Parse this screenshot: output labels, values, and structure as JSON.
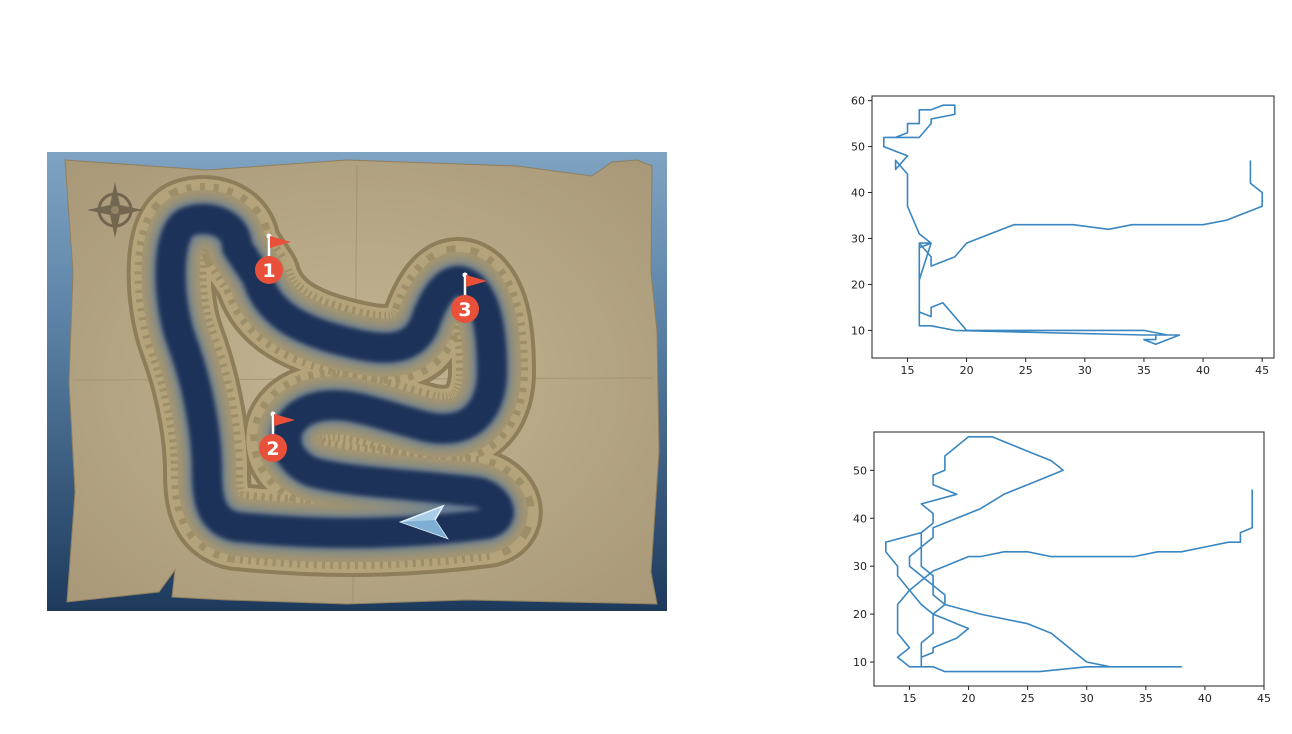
{
  "map": {
    "waypoints": [
      {
        "label": "1"
      },
      {
        "label": "2"
      },
      {
        "label": "3"
      }
    ],
    "icons": {
      "compass": "compass-rose-icon",
      "player": "player-arrow-icon",
      "flag": "flag-icon"
    },
    "colors": {
      "water": "#1d3358",
      "parchment": "#b8a988",
      "sand": "#a6966f",
      "marker": "#e8503a",
      "sky": "#6a8fb0",
      "player": "#a9cde8"
    }
  },
  "chart_data": [
    {
      "type": "line",
      "color": "#3a86c0",
      "xlim": [
        12,
        46
      ],
      "ylim": [
        4,
        61
      ],
      "xticks": [
        15,
        20,
        25,
        30,
        35,
        40,
        45
      ],
      "yticks": [
        10,
        20,
        30,
        40,
        50,
        60
      ],
      "x": [
        44,
        44,
        45,
        45,
        42,
        40,
        36,
        34,
        32,
        29,
        27,
        24,
        23,
        22,
        20,
        19,
        18,
        17,
        17,
        16,
        16,
        17,
        16,
        16,
        16,
        16,
        17,
        17,
        18,
        20,
        30,
        35,
        35,
        37,
        36,
        36,
        35,
        36,
        38,
        35,
        19,
        17,
        16,
        16,
        16,
        17,
        16,
        15,
        15,
        15,
        14,
        14,
        15,
        14,
        13,
        13,
        15,
        16,
        17,
        17,
        19,
        19,
        18,
        17,
        16,
        16,
        15,
        15,
        14,
        13,
        13
      ],
      "y": [
        47,
        42,
        40,
        37,
        34,
        33,
        33,
        33,
        32,
        33,
        33,
        33,
        32,
        31,
        29,
        26,
        25,
        24,
        26,
        29,
        29,
        29,
        28,
        29,
        16,
        14,
        13,
        15,
        16,
        10,
        10,
        10,
        10,
        9,
        9,
        8,
        8,
        7,
        9,
        9,
        10,
        11,
        11,
        12,
        21,
        29,
        31,
        37,
        39,
        44,
        47,
        45,
        48,
        49,
        50,
        52,
        52,
        52,
        55,
        56,
        57,
        59,
        59,
        58,
        58,
        55,
        55,
        53,
        52,
        52,
        52
      ],
      "title": "",
      "xlabel": "",
      "ylabel": ""
    },
    {
      "type": "line",
      "color": "#3a86c0",
      "xlim": [
        12,
        45
      ],
      "ylim": [
        5,
        58
      ],
      "xticks": [
        15,
        20,
        25,
        30,
        35,
        40,
        45
      ],
      "yticks": [
        10,
        20,
        30,
        40,
        50
      ],
      "x": [
        44,
        44,
        43,
        43,
        42,
        40,
        38,
        36,
        34,
        32,
        30,
        28,
        27,
        25,
        23,
        21,
        20,
        19,
        18,
        17,
        16,
        15,
        14,
        14,
        14,
        14,
        15,
        14,
        15,
        16,
        16,
        16,
        16,
        17,
        17,
        17,
        18,
        18,
        17,
        17,
        16,
        16,
        16,
        16,
        17,
        17,
        16,
        19,
        17,
        17,
        18,
        18,
        18,
        19,
        20,
        22,
        23,
        24,
        25,
        26,
        27,
        28,
        27,
        25,
        23,
        21,
        19,
        17,
        17,
        16,
        15,
        15,
        16,
        17,
        17,
        18,
        21,
        25,
        27,
        28,
        29,
        30,
        32,
        35,
        38,
        30,
        26,
        24,
        21,
        18,
        17,
        16,
        16,
        17,
        17,
        19,
        20,
        19,
        18,
        17,
        16,
        15,
        14,
        14,
        13,
        13,
        16
      ],
      "y": [
        46,
        38,
        37,
        35,
        35,
        34,
        33,
        33,
        32,
        32,
        32,
        32,
        32,
        33,
        33,
        32,
        32,
        31,
        30,
        29,
        27,
        25,
        22,
        20,
        18,
        16,
        13,
        11,
        9,
        9,
        10,
        12,
        14,
        16,
        18,
        20,
        22,
        24,
        26,
        28,
        30,
        33,
        35,
        37,
        39,
        41,
        43,
        45,
        47,
        49,
        50,
        52,
        53,
        55,
        57,
        57,
        56,
        55,
        54,
        53,
        52,
        50,
        49,
        47,
        45,
        42,
        40,
        38,
        36,
        34,
        32,
        30,
        28,
        26,
        24,
        22,
        20,
        18,
        16,
        14,
        12,
        10,
        9,
        9,
        9,
        9,
        8,
        8,
        8,
        8,
        9,
        9,
        11,
        12,
        13,
        15,
        17,
        18,
        19,
        20,
        22,
        25,
        28,
        30,
        33,
        35,
        37
      ],
      "title": "",
      "xlabel": "",
      "ylabel": ""
    }
  ]
}
